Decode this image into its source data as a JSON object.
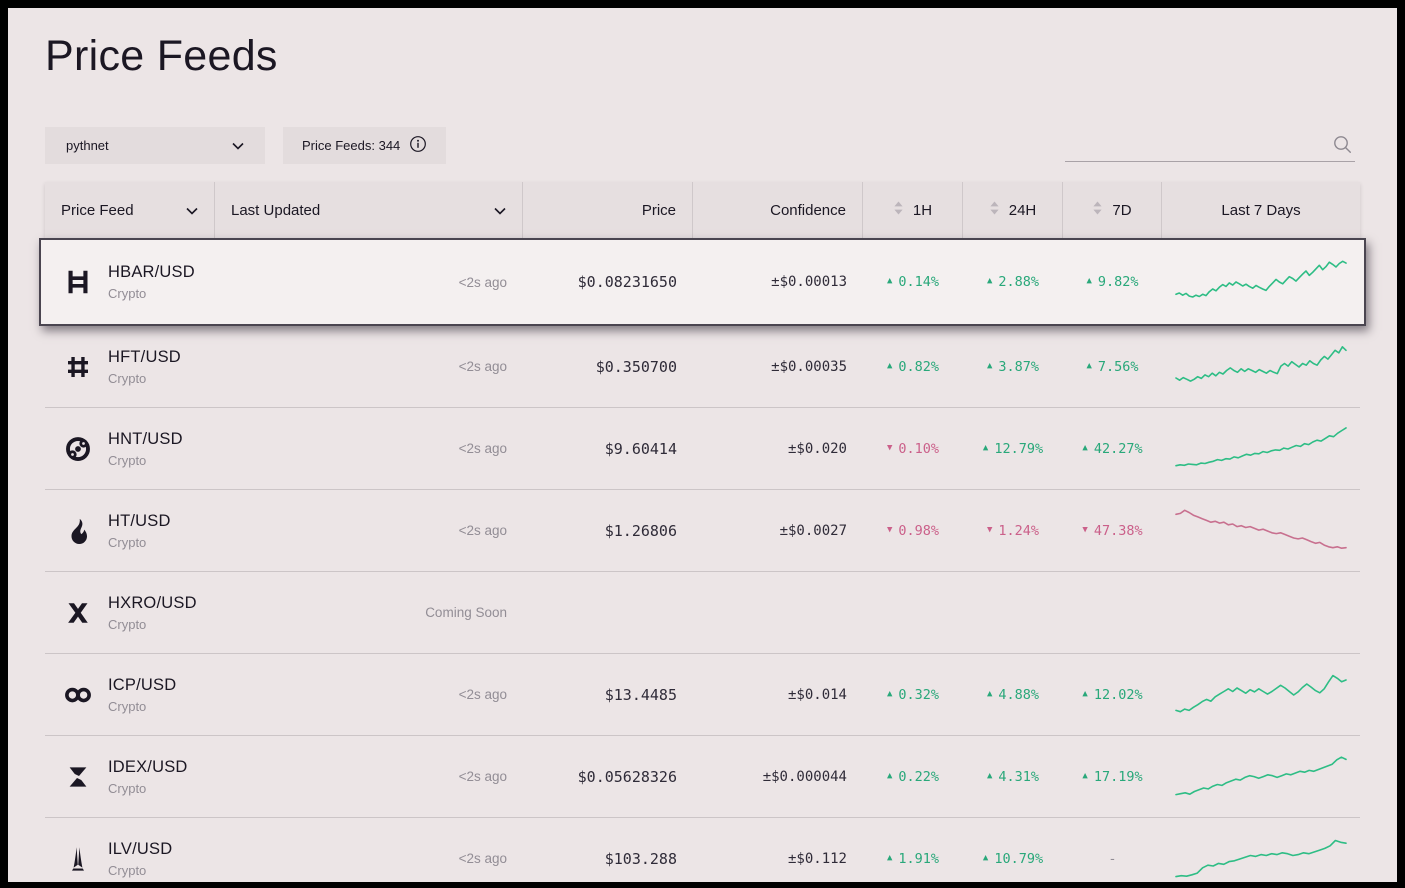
{
  "theme": {
    "background": "#ece5e6",
    "header_bg": "#e6dfe0",
    "control_bg": "#e3dcdd",
    "highlight_bg": "#f4f0f0",
    "ink": "#1b1723",
    "ink_soft": "#2f2b38",
    "muted": "#928d95",
    "divider": "#cfc8ca",
    "row_divider": "#ccc5c7",
    "positive": "#29a87a",
    "negative": "#cb608a",
    "positive_line": "#2ebd85",
    "negative_line": "#c8708f"
  },
  "page": {
    "title": "Price Feeds",
    "network_select": {
      "value": "pythnet"
    },
    "feeds_count": {
      "label": "Price Feeds: 344"
    },
    "search": {
      "value": "",
      "placeholder": ""
    }
  },
  "table": {
    "columns": {
      "price_feed": "Price Feed",
      "last_updated": "Last Updated",
      "price": "Price",
      "confidence": "Confidence",
      "h1": "1H",
      "h24": "24H",
      "d7": "7D",
      "last_7_days": "Last 7 Days"
    },
    "rows": [
      {
        "symbol": "HBAR/USD",
        "asset_type": "Crypto",
        "icon": "hedera",
        "last_updated": "<2s ago",
        "price": "$0.08231650",
        "confidence": "±$0.00013",
        "h1": {
          "dir": "up",
          "value": "0.14%"
        },
        "h24": {
          "dir": "up",
          "value": "2.88%"
        },
        "d7": {
          "dir": "up",
          "value": "9.82%"
        },
        "highlighted": true,
        "sparkline": {
          "trend": "up",
          "points": [
            22,
            25,
            20,
            24,
            18,
            16,
            20,
            17,
            22,
            19,
            28,
            34,
            30,
            38,
            44,
            40,
            48,
            43,
            50,
            46,
            41,
            45,
            40,
            36,
            42,
            38,
            34,
            31,
            40,
            48,
            56,
            50,
            46,
            54,
            62,
            58,
            52,
            60,
            68,
            75,
            65,
            72,
            80,
            88,
            78,
            85,
            95,
            90,
            84,
            92,
            97,
            93
          ]
        }
      },
      {
        "symbol": "HFT/USD",
        "asset_type": "Crypto",
        "icon": "hashflow",
        "last_updated": "<2s ago",
        "price": "$0.350700",
        "confidence": "±$0.00035",
        "h1": {
          "dir": "up",
          "value": "0.82%"
        },
        "h24": {
          "dir": "up",
          "value": "3.87%"
        },
        "d7": {
          "dir": "up",
          "value": "7.56%"
        },
        "highlighted": false,
        "sparkline": {
          "trend": "up",
          "points": [
            25,
            20,
            26,
            22,
            18,
            22,
            28,
            24,
            32,
            28,
            36,
            30,
            38,
            34,
            42,
            48,
            42,
            38,
            46,
            40,
            46,
            42,
            38,
            44,
            40,
            36,
            42,
            38,
            35,
            52,
            58,
            52,
            62,
            56,
            50,
            58,
            54,
            64,
            58,
            54,
            66,
            74,
            68,
            78,
            88,
            82,
            96,
            88
          ]
        }
      },
      {
        "symbol": "HNT/USD",
        "asset_type": "Crypto",
        "icon": "helium",
        "last_updated": "<2s ago",
        "price": "$9.60414",
        "confidence": "±$0.020",
        "h1": {
          "dir": "down",
          "value": "0.10%"
        },
        "h24": {
          "dir": "up",
          "value": "12.79%"
        },
        "d7": {
          "dir": "up",
          "value": "42.27%"
        },
        "highlighted": false,
        "sparkline": {
          "trend": "up",
          "points": [
            12,
            14,
            13,
            16,
            15,
            14,
            18,
            17,
            20,
            22,
            26,
            24,
            28,
            27,
            32,
            30,
            34,
            38,
            36,
            40,
            39,
            44,
            42,
            46,
            48,
            47,
            52,
            50,
            54,
            58,
            56,
            62,
            60,
            66,
            70,
            68,
            74,
            80,
            78,
            86,
            92,
            98
          ]
        }
      },
      {
        "symbol": "HT/USD",
        "asset_type": "Crypto",
        "icon": "huobi",
        "last_updated": "<2s ago",
        "price": "$1.26806",
        "confidence": "±$0.0027",
        "h1": {
          "dir": "down",
          "value": "0.98%"
        },
        "h24": {
          "dir": "down",
          "value": "1.24%"
        },
        "d7": {
          "dir": "down",
          "value": "47.38%"
        },
        "highlighted": false,
        "sparkline": {
          "trend": "down",
          "points": [
            88,
            90,
            97,
            92,
            86,
            82,
            78,
            74,
            70,
            72,
            68,
            70,
            64,
            66,
            60,
            62,
            58,
            60,
            56,
            52,
            54,
            50,
            46,
            44,
            46,
            42,
            38,
            34,
            32,
            34,
            30,
            26,
            22,
            24,
            18,
            14,
            12,
            14,
            11,
            12
          ]
        }
      },
      {
        "symbol": "HXRO/USD",
        "asset_type": "Crypto",
        "icon": "hxro",
        "last_updated": "Coming Soon",
        "price": "",
        "confidence": "",
        "h1": null,
        "h24": null,
        "d7": null,
        "highlighted": false,
        "sparkline": null
      },
      {
        "symbol": "ICP/USD",
        "asset_type": "Crypto",
        "icon": "icp",
        "last_updated": "<2s ago",
        "price": "$13.4485",
        "confidence": "±$0.014",
        "h1": {
          "dir": "up",
          "value": "0.32%"
        },
        "h24": {
          "dir": "up",
          "value": "4.88%"
        },
        "d7": {
          "dir": "up",
          "value": "12.02%"
        },
        "highlighted": false,
        "sparkline": {
          "trend": "up",
          "points": [
            15,
            12,
            18,
            15,
            22,
            28,
            35,
            40,
            36,
            46,
            52,
            58,
            64,
            58,
            66,
            60,
            54,
            62,
            57,
            64,
            58,
            52,
            58,
            65,
            72,
            66,
            58,
            50,
            57,
            67,
            75,
            68,
            60,
            55,
            64,
            80,
            94,
            88,
            80,
            84
          ]
        }
      },
      {
        "symbol": "IDEX/USD",
        "asset_type": "Crypto",
        "icon": "idex",
        "last_updated": "<2s ago",
        "price": "$0.05628326",
        "confidence": "±$0.000044",
        "h1": {
          "dir": "up",
          "value": "0.22%"
        },
        "h24": {
          "dir": "up",
          "value": "4.31%"
        },
        "d7": {
          "dir": "up",
          "value": "17.19%"
        },
        "highlighted": false,
        "sparkline": {
          "trend": "up",
          "points": [
            10,
            12,
            14,
            11,
            17,
            21,
            25,
            23,
            29,
            33,
            31,
            37,
            41,
            45,
            43,
            49,
            53,
            51,
            47,
            51,
            55,
            53,
            49,
            53,
            57,
            55,
            59,
            63,
            61,
            65,
            63,
            67,
            71,
            75,
            79,
            89,
            95,
            90
          ]
        }
      },
      {
        "symbol": "ILV/USD",
        "asset_type": "Crypto",
        "icon": "illuvium",
        "last_updated": "<2s ago",
        "price": "$103.288",
        "confidence": "±$0.112",
        "h1": {
          "dir": "up",
          "value": "1.91%"
        },
        "h24": {
          "dir": "up",
          "value": "10.79%"
        },
        "d7": {
          "dir": "none",
          "value": "-"
        },
        "highlighted": false,
        "sparkline": {
          "trend": "up",
          "points": [
            10,
            12,
            11,
            14,
            18,
            30,
            36,
            34,
            40,
            38,
            44,
            46,
            50,
            54,
            58,
            56,
            60,
            58,
            62,
            60,
            64,
            62,
            58,
            60,
            64,
            62,
            66,
            70,
            74,
            80,
            92,
            88,
            86
          ]
        }
      }
    ]
  }
}
